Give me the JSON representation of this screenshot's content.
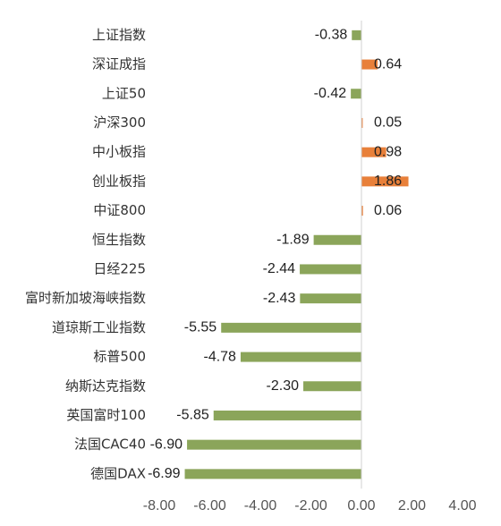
{
  "chart_data": {
    "type": "bar",
    "orientation": "horizontal",
    "categories": [
      "上证指数",
      "深证成指",
      "上证50",
      "沪深300",
      "中小板指",
      "创业板指",
      "中证800",
      "恒生指数",
      "日经225",
      "富时新加坡海峡指数",
      "道琼斯工业指数",
      "标普500",
      "纳斯达克指数",
      "英国富时100",
      "法国CAC40",
      "德国DAX"
    ],
    "values": [
      -0.38,
      0.64,
      -0.42,
      0.05,
      0.98,
      1.86,
      0.06,
      -1.89,
      -2.44,
      -2.43,
      -5.55,
      -4.78,
      -2.3,
      -5.85,
      -6.9,
      -6.99
    ],
    "value_labels": [
      "-0.38",
      "0.64",
      "-0.42",
      "0.05",
      "0.98",
      "1.86",
      "0.06",
      "-1.89",
      "-2.44",
      "-2.43",
      "-5.55",
      "-4.78",
      "-2.30",
      "-5.85",
      "-6.90",
      "-6.99"
    ],
    "xlim": [
      -8,
      4
    ],
    "x_ticks": [
      "-8.00",
      "-6.00",
      "-4.00",
      "-2.00",
      "0.00",
      "2.00",
      "4.00"
    ],
    "title": "",
    "xlabel": "",
    "ylabel": "",
    "grid": false,
    "colors": {
      "positive": "#E8803A",
      "negative": "#8BA55A",
      "axis": "#D0D0D0"
    }
  }
}
